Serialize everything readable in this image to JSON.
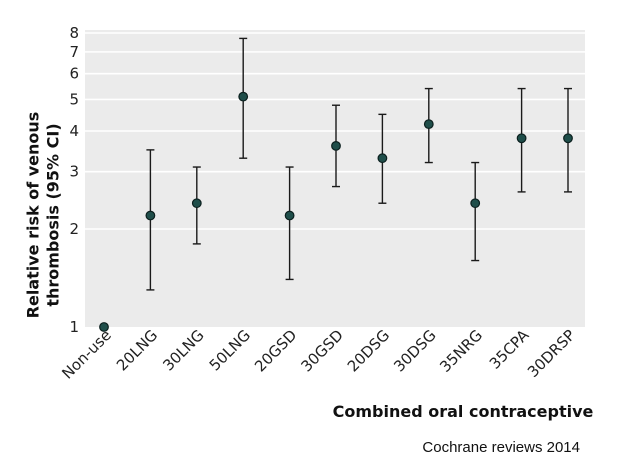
{
  "chart_data": {
    "type": "scatter",
    "subtype": "point-estimate-with-confidence-interval",
    "y_scale": "log",
    "ylim": [
      1,
      8
    ],
    "y_ticks": [
      1,
      2,
      3,
      4,
      5,
      6,
      7,
      8
    ],
    "y_tick_labels": [
      "1",
      "2",
      "3",
      "4",
      "5",
      "6",
      "7",
      "8"
    ],
    "ylabel": "Relative risk of venous thrombosis (95% CI)",
    "xlabel": "Combined oral contraceptive",
    "source_note": "Cochrane reviews 2014",
    "grid": "horizontal",
    "colors": {
      "plot_background": "#ebebeb",
      "grid": "#ffffff",
      "marker_fill": "#1f4e4a",
      "marker_edge": "#0b1f1e",
      "whisker": "#1a1a1a"
    },
    "categories": [
      "Non-use",
      "20LNG",
      "30LNG",
      "50LNG",
      "20GSD",
      "30GSD",
      "20DSG",
      "30DSG",
      "35NRG",
      "35CPA",
      "30DRSP"
    ],
    "values": [
      1.0,
      2.2,
      2.4,
      5.1,
      2.2,
      3.6,
      3.3,
      4.2,
      2.4,
      3.8,
      3.8
    ],
    "ci_lower": [
      null,
      1.3,
      1.8,
      3.3,
      1.4,
      2.7,
      2.4,
      3.2,
      1.6,
      2.6,
      2.6
    ],
    "ci_upper": [
      null,
      3.5,
      3.1,
      7.7,
      3.1,
      4.8,
      4.5,
      5.4,
      3.2,
      5.4,
      5.4
    ]
  }
}
